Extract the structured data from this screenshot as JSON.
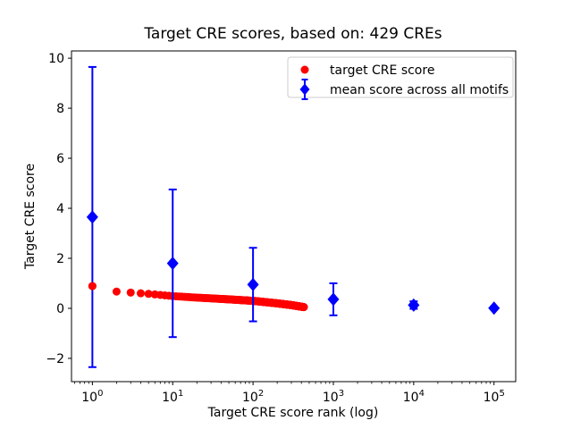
{
  "chart_data": {
    "type": "scatter",
    "title": "Target CRE scores, based on: 429 CREs",
    "xlabel": "Target CRE score rank (log)",
    "ylabel": "Target CRE score",
    "x_scale": "log",
    "x_major_tick_exponents": [
      0,
      1,
      2,
      3,
      4,
      5
    ],
    "y_ticks": [
      -2,
      0,
      2,
      4,
      6,
      8,
      10
    ],
    "xlim_log10": [
      -0.26,
      5.27
    ],
    "ylim": [
      -2.93,
      10.29
    ],
    "grid": false,
    "legend_position": "upper right",
    "colors": {
      "target_series": "#ff0000",
      "mean_series": "#0000ff",
      "axis": "#000000",
      "legend_border": "#cccccc",
      "background": "#ffffff"
    },
    "series": [
      {
        "name": "target CRE score",
        "marker": "circle",
        "color": "#ff0000",
        "n_points": 429,
        "rank_range": [
          1,
          429
        ],
        "anchor_points": [
          [
            1,
            0.89
          ],
          [
            2,
            0.67
          ],
          [
            3,
            0.63
          ],
          [
            5,
            0.58
          ],
          [
            10,
            0.49
          ],
          [
            20,
            0.43
          ],
          [
            50,
            0.36
          ],
          [
            100,
            0.3
          ],
          [
            200,
            0.2
          ],
          [
            300,
            0.13
          ],
          [
            429,
            0.05
          ]
        ]
      },
      {
        "name": "mean score across all motifs",
        "marker": "diamond",
        "color": "#0000ff",
        "points": [
          {
            "x": 1,
            "y": 3.65,
            "err": 6.0
          },
          {
            "x": 10,
            "y": 1.8,
            "err": 2.95
          },
          {
            "x": 100,
            "y": 0.95,
            "err": 1.47
          },
          {
            "x": 1000,
            "y": 0.36,
            "err": 0.64
          },
          {
            "x": 10000,
            "y": 0.13,
            "err": 0.15
          },
          {
            "x": 100000,
            "y": 0.01,
            "err": 0.05
          }
        ]
      }
    ]
  }
}
